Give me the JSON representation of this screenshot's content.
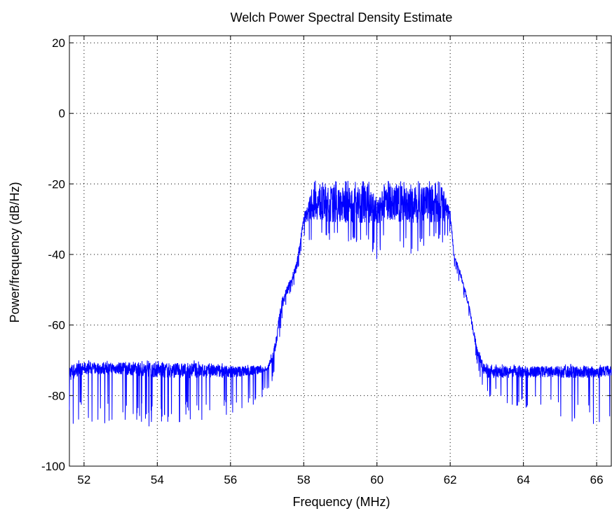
{
  "chart_data": {
    "type": "line",
    "title": "Welch Power Spectral Density Estimate",
    "xlabel": "Frequency (MHz)",
    "ylabel": "Power/frequency (dB/Hz)",
    "xlim": [
      51.6,
      66.4
    ],
    "ylim": [
      -100,
      22
    ],
    "x_ticks": [
      52,
      54,
      56,
      58,
      60,
      62,
      64,
      66
    ],
    "x_tick_labels": [
      "52",
      "54",
      "56",
      "58",
      "60",
      "62",
      "64",
      "66"
    ],
    "y_ticks": [
      -100,
      -80,
      -60,
      -40,
      -20,
      0,
      20
    ],
    "y_tick_labels": [
      "-100",
      "-80",
      "-60",
      "-40",
      "-20",
      "0",
      "20"
    ],
    "grid": true,
    "grid_style": "dotted",
    "line_color": "#0000ff",
    "series": [
      {
        "x": [
          51.6,
          52.0,
          53.0,
          54.0,
          55.0,
          56.0,
          56.8,
          57.0,
          57.2,
          57.4,
          57.6,
          57.8,
          58.0,
          58.3,
          58.6,
          59.0,
          59.4,
          59.8,
          60.0,
          60.2,
          60.6,
          61.0,
          61.4,
          61.8,
          62.0,
          62.1,
          62.3,
          62.5,
          62.7,
          62.9,
          63.0,
          63.5,
          64.0,
          65.0,
          66.0,
          66.4
        ],
        "upper": [
          -70,
          -70,
          -70,
          -70,
          -70,
          -71,
          -71,
          -72,
          -65,
          -52,
          -47,
          -42,
          -28,
          -19,
          -19,
          -19,
          -19,
          -19,
          -24,
          -19,
          -19,
          -19,
          -19,
          -19,
          -27,
          -39,
          -45,
          -53,
          -64,
          -70,
          -71,
          -71,
          -71,
          -71,
          -71,
          -71
        ],
        "lower": [
          -91,
          -87,
          -89,
          -89,
          -88,
          -86,
          -82,
          -80,
          -75,
          -60,
          -52,
          -47,
          -36,
          -36,
          -36,
          -36,
          -37,
          -37,
          -43,
          -38,
          -39,
          -40,
          -37,
          -37,
          -35,
          -44,
          -50,
          -58,
          -70,
          -79,
          -80,
          -82,
          -84,
          -88,
          -89,
          -89
        ],
        "envelope_floor": [
          -76,
          -74,
          -74,
          -75,
          -75,
          -75,
          -74,
          -73,
          -70,
          -56,
          -50,
          -45,
          -31,
          -30,
          -31,
          -31,
          -31,
          -31,
          -32,
          -30,
          -31,
          -31,
          -31,
          -31,
          -30,
          -41,
          -47,
          -55,
          -67,
          -74,
          -75,
          -75,
          -75,
          -75,
          -75,
          -75
        ]
      }
    ]
  }
}
